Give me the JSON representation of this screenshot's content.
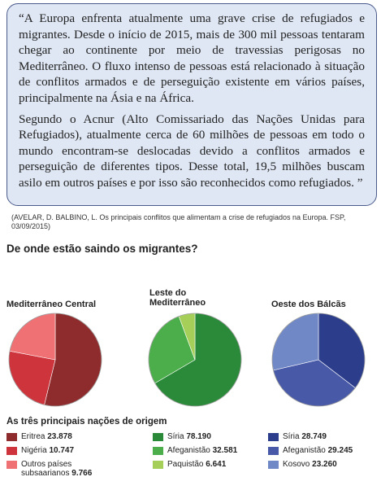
{
  "quote": {
    "paragraphs": [
      "“A Europa enfrenta atualmente uma grave crise de refugiados e migrantes. Desde o início de 2015, mais de 300 mil pessoas tentaram chegar ao continente por meio de travessias perigosas no Mediterrâneo. O fluxo intenso de pessoas está relacionado à situação de conflitos armados e de perseguição existente em vários países, principalmente na Ásia e na África.",
      "Segundo o Acnur (Alto Comissariado das Nações Unidas para Refugiados), atualmente cerca de 60 milhões de pessoas em todo o mundo encontram-se deslocadas devido a conflitos armados e perseguição de diferentes tipos. Desse total, 19,5 milhões buscam asilo em outros países e por isso são reconhecidos como refugiados. ”"
    ]
  },
  "citation": "(AVELAR, D. BALBINO, L. Os principais conflitos que alimentam a crise de refugiados na Europa. FSP, 03/09/2015)",
  "infographic": {
    "title": "De onde estão saindo os migrantes?",
    "legend_title": "As três principais nações de origem"
  },
  "chart_data": [
    {
      "type": "pie",
      "title": "Mediterrâneo Central",
      "categories": [
        "Eritrea",
        "Nigéria",
        "Outros países subsaarianos"
      ],
      "values": [
        23878,
        10747,
        9766
      ],
      "value_labels": [
        "23.878",
        "10.747",
        "9.766"
      ],
      "colors": [
        "#8e2b2c",
        "#cd343c",
        "#ef7173"
      ]
    },
    {
      "type": "pie",
      "title": "Leste do Mediterrâneo",
      "categories": [
        "Síria",
        "Afeganistão",
        "Paquistão"
      ],
      "values": [
        78190,
        32581,
        6641
      ],
      "value_labels": [
        "78.190",
        "32.581",
        "6.641"
      ],
      "colors": [
        "#2b8a3a",
        "#4bae4a",
        "#a5cf58"
      ]
    },
    {
      "type": "pie",
      "title": "Oeste dos Bálcãs",
      "categories": [
        "Síria",
        "Afeganistão",
        "Kosovo"
      ],
      "values": [
        28749,
        29245,
        23260
      ],
      "value_labels": [
        "28.749",
        "29.245",
        "23.260"
      ],
      "colors": [
        "#2b3d8b",
        "#4859a8",
        "#7088c6"
      ]
    }
  ]
}
